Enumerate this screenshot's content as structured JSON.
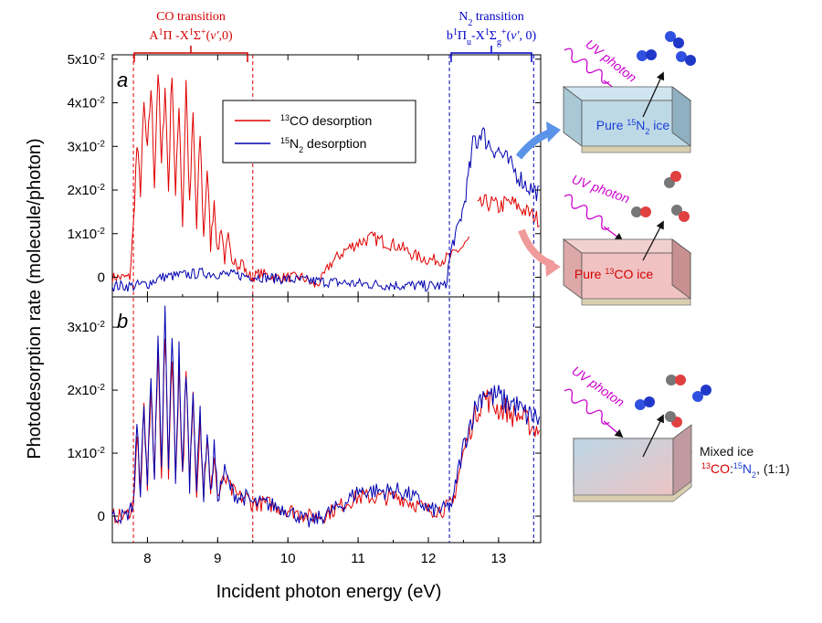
{
  "panels": {
    "a": {
      "label": "a"
    },
    "b": {
      "label": "b"
    }
  },
  "annotations": {
    "co_transition": {
      "title": "CO transition",
      "energy_range_eV": [
        7.8,
        9.5
      ]
    },
    "n2_transition": {
      "title": "N2 transition",
      "energy_range_eV": [
        12.3,
        13.5
      ]
    }
  },
  "schematic": {
    "uv_label": "UV photon",
    "pure_n2_label": "Pure 15N2 ice",
    "pure_co_label": "Pure 13CO ice",
    "mixed_label": "Mixed ice",
    "mixed_composition": "13CO:15N2, (1:1)"
  },
  "colors": {
    "co": "#e00000",
    "n2": "#0000b0"
  },
  "chart_data": [
    {
      "type": "line",
      "panel": "a",
      "title": "",
      "xlabel": "Incident photon energy (eV)",
      "ylabel": "Photodesorption rate (molecule/photon)",
      "xlim": [
        7.5,
        13.6
      ],
      "ylim": [
        -0.0045,
        0.051
      ],
      "xticks": [
        8,
        9,
        10,
        11,
        12,
        13
      ],
      "yticks": [
        0,
        0.01,
        0.02,
        0.03,
        0.04,
        0.05
      ],
      "ytick_labels": [
        "0",
        "1x10-2",
        "2x10-2",
        "3x10-2",
        "4x10-2",
        "5x10-2"
      ],
      "legend": [
        "13CO desorption",
        "15N2 desorption"
      ],
      "series": [
        {
          "name": "13CO desorption",
          "color": "#e00000",
          "x": [
            7.5,
            7.75,
            7.8,
            7.85,
            7.9,
            7.95,
            8.0,
            8.05,
            8.1,
            8.15,
            8.2,
            8.25,
            8.3,
            8.35,
            8.4,
            8.45,
            8.5,
            8.55,
            8.6,
            8.65,
            8.7,
            8.75,
            8.8,
            8.85,
            8.9,
            8.95,
            9.0,
            9.05,
            9.1,
            9.15,
            9.2,
            9.25,
            9.3,
            9.35,
            9.4,
            9.5,
            9.6,
            9.8,
            10.0,
            10.2,
            10.4,
            10.5,
            10.6,
            10.8,
            11.0,
            11.2,
            11.4,
            11.6,
            11.8,
            12.0,
            12.2,
            12.35,
            12.4,
            12.5,
            12.6,
            12.65,
            12.7,
            12.8,
            12.9,
            13.0,
            13.1,
            13.2,
            13.3,
            13.4,
            13.5,
            13.6
          ],
          "y": [
            0.0,
            0.0,
            0.012,
            0.03,
            0.02,
            0.039,
            0.028,
            0.044,
            0.022,
            0.048,
            0.025,
            0.045,
            0.02,
            0.049,
            0.018,
            0.041,
            0.012,
            0.045,
            0.016,
            0.037,
            0.011,
            0.033,
            0.009,
            0.025,
            0.007,
            0.018,
            0.005,
            0.012,
            0.004,
            0.009,
            0.003,
            0.005,
            0.002,
            0.004,
            0.001,
            0.0,
            0.001,
            0.0,
            0.0,
            0.0,
            -0.002,
            0.0,
            0.003,
            0.006,
            0.008,
            0.009,
            0.008,
            0.007,
            0.005,
            0.004,
            0.004,
            0.005,
            0.006,
            0.007,
            0.009,
            null,
            0.016,
            0.017,
            0.017,
            0.016,
            0.017,
            0.017,
            0.016,
            0.015,
            0.014,
            0.013
          ]
        },
        {
          "name": "15N2 desorption",
          "color": "#0000b0",
          "x": [
            7.5,
            7.8,
            8.0,
            8.2,
            8.5,
            8.8,
            9.0,
            9.5,
            10.0,
            10.5,
            11.0,
            11.5,
            12.0,
            12.25,
            12.3,
            12.35,
            12.4,
            12.45,
            12.5,
            12.55,
            12.6,
            12.65,
            12.7,
            12.75,
            12.8,
            12.9,
            13.0,
            13.1,
            13.2,
            13.3,
            13.4,
            13.5,
            13.6
          ],
          "y": [
            -0.002,
            -0.002,
            -0.0015,
            0.0,
            0.0005,
            0.001,
            0.0008,
            0.0002,
            -0.0005,
            -0.001,
            -0.0015,
            -0.0018,
            -0.002,
            -0.002,
            0.004,
            0.008,
            0.01,
            0.013,
            0.016,
            0.021,
            0.026,
            0.032,
            0.031,
            0.034,
            0.032,
            0.03,
            0.029,
            0.027,
            0.025,
            0.023,
            0.021,
            0.02,
            0.019
          ]
        }
      ]
    },
    {
      "type": "line",
      "panel": "b",
      "title": "",
      "xlabel": "Incident photon energy (eV)",
      "ylabel": "Photodesorption rate (molecule/photon)",
      "xlim": [
        7.5,
        13.6
      ],
      "ylim": [
        -0.0042,
        0.0348
      ],
      "xticks": [
        8,
        9,
        10,
        11,
        12,
        13
      ],
      "yticks": [
        0,
        0.01,
        0.02,
        0.03
      ],
      "ytick_labels": [
        "0",
        "1x10-2",
        "2x10-2",
        "3x10-2"
      ],
      "series": [
        {
          "name": "13CO desorption",
          "color": "#e00000",
          "x": [
            7.5,
            7.7,
            7.8,
            7.85,
            7.9,
            7.95,
            8.0,
            8.05,
            8.1,
            8.15,
            8.2,
            8.25,
            8.3,
            8.35,
            8.4,
            8.45,
            8.5,
            8.55,
            8.6,
            8.65,
            8.7,
            8.75,
            8.8,
            8.85,
            8.9,
            8.95,
            9.0,
            9.1,
            9.2,
            9.3,
            9.4,
            9.5,
            9.7,
            10.0,
            10.3,
            10.5,
            10.8,
            11.0,
            11.2,
            11.4,
            11.6,
            11.8,
            12.0,
            12.2,
            12.35,
            12.4,
            12.5,
            12.6,
            12.7,
            12.8,
            12.9,
            13.0,
            13.1,
            13.2,
            13.3,
            13.4,
            13.5,
            13.6
          ],
          "y": [
            0.0,
            0.0,
            0.002,
            0.013,
            0.004,
            0.016,
            0.005,
            0.021,
            0.006,
            0.026,
            0.007,
            0.029,
            0.007,
            0.027,
            0.006,
            0.024,
            0.006,
            0.022,
            0.005,
            0.019,
            0.004,
            0.016,
            0.003,
            0.013,
            0.003,
            0.01,
            0.003,
            0.006,
            0.004,
            0.003,
            0.003,
            0.002,
            0.002,
            0.001,
            0.0,
            0.0,
            0.002,
            0.003,
            0.003,
            0.003,
            0.003,
            0.002,
            0.001,
            0.001,
            0.002,
            0.005,
            0.01,
            0.014,
            0.017,
            0.019,
            0.018,
            0.017,
            0.017,
            0.016,
            0.016,
            0.015,
            0.014,
            0.014
          ]
        },
        {
          "name": "15N2 desorption",
          "color": "#0000b0",
          "x": [
            7.5,
            7.7,
            7.8,
            7.85,
            7.9,
            7.95,
            8.0,
            8.05,
            8.1,
            8.15,
            8.2,
            8.25,
            8.3,
            8.35,
            8.4,
            8.45,
            8.5,
            8.55,
            8.6,
            8.65,
            8.7,
            8.75,
            8.8,
            8.85,
            8.9,
            8.95,
            9.0,
            9.1,
            9.2,
            9.3,
            9.4,
            9.5,
            9.7,
            10.0,
            10.3,
            10.5,
            10.8,
            11.0,
            11.2,
            11.4,
            11.6,
            11.8,
            12.0,
            12.2,
            12.35,
            12.4,
            12.5,
            12.6,
            12.7,
            12.8,
            12.9,
            13.0,
            13.1,
            13.2,
            13.3,
            13.4,
            13.5,
            13.6
          ],
          "y": [
            0.0,
            0.0,
            0.002,
            0.014,
            0.004,
            0.017,
            0.005,
            0.023,
            0.006,
            0.027,
            0.007,
            0.032,
            0.007,
            0.03,
            0.006,
            0.026,
            0.006,
            0.024,
            0.005,
            0.021,
            0.004,
            0.017,
            0.003,
            0.014,
            0.003,
            0.011,
            0.003,
            0.007,
            0.004,
            0.003,
            0.003,
            0.002,
            0.002,
            0.001,
            -0.001,
            0.0,
            0.002,
            0.004,
            0.004,
            0.004,
            0.004,
            0.003,
            0.001,
            0.001,
            0.002,
            0.006,
            0.011,
            0.015,
            0.018,
            0.02,
            0.019,
            0.019,
            0.018,
            0.018,
            0.017,
            0.016,
            0.016,
            0.015
          ]
        }
      ]
    }
  ]
}
